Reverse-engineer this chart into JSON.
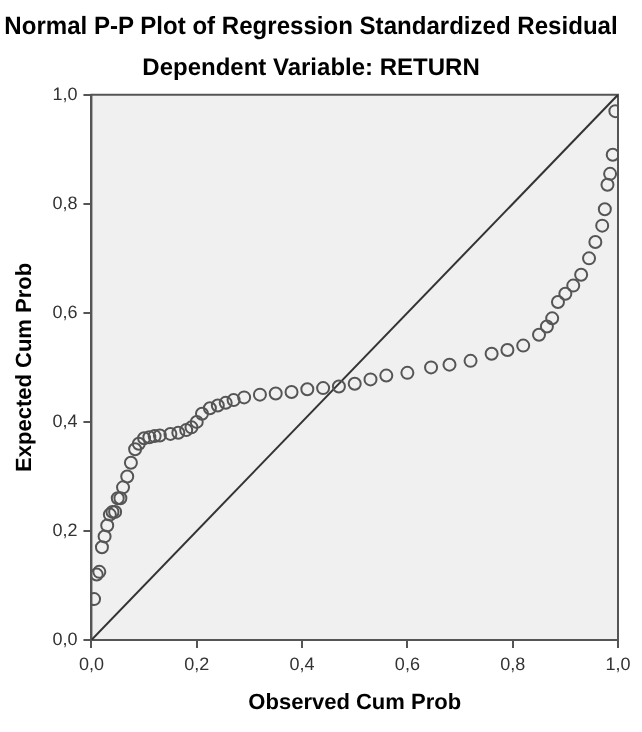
{
  "chart_data": {
    "type": "scatter",
    "title": "Normal P-P Plot of Regression Standardized Residual",
    "subtitle": "Dependent Variable: RETURN",
    "xlabel": "Observed Cum Prob",
    "ylabel": "Expected Cum Prob",
    "xlim": [
      0,
      1
    ],
    "ylim": [
      0,
      1
    ],
    "xticks": [
      {
        "value": 0,
        "label": "0,0"
      },
      {
        "value": 0.2,
        "label": "0,2"
      },
      {
        "value": 0.4,
        "label": "0,4"
      },
      {
        "value": 0.6,
        "label": "0,6"
      },
      {
        "value": 0.8,
        "label": "0,8"
      },
      {
        "value": 1,
        "label": "1,0"
      }
    ],
    "yticks": [
      {
        "value": 0,
        "label": "0,0"
      },
      {
        "value": 0.2,
        "label": "0,2"
      },
      {
        "value": 0.4,
        "label": "0,4"
      },
      {
        "value": 0.6,
        "label": "0,6"
      },
      {
        "value": 0.8,
        "label": "0,8"
      },
      {
        "value": 1,
        "label": "1,0"
      }
    ],
    "marker": "circle",
    "series": [
      {
        "color": "#555555",
        "x": [
          0.005,
          0.01,
          0.015,
          0.02,
          0.025,
          0.03,
          0.035,
          0.04,
          0.045,
          0.05,
          0.055,
          0.06,
          0.068,
          0.075,
          0.083,
          0.09,
          0.1,
          0.11,
          0.12,
          0.13,
          0.15,
          0.165,
          0.18,
          0.19,
          0.2,
          0.21,
          0.225,
          0.24,
          0.255,
          0.27,
          0.29,
          0.32,
          0.35,
          0.38,
          0.41,
          0.44,
          0.47,
          0.5,
          0.53,
          0.56,
          0.6,
          0.645,
          0.68,
          0.72,
          0.76,
          0.79,
          0.82,
          0.85,
          0.865,
          0.875,
          0.886,
          0.9,
          0.915,
          0.93,
          0.945,
          0.957,
          0.97,
          0.975,
          0.98,
          0.985,
          0.99,
          0.995
        ],
        "values": [
          0.075,
          0.12,
          0.125,
          0.17,
          0.19,
          0.21,
          0.23,
          0.235,
          0.235,
          0.26,
          0.26,
          0.28,
          0.3,
          0.325,
          0.35,
          0.36,
          0.37,
          0.372,
          0.374,
          0.375,
          0.378,
          0.38,
          0.385,
          0.39,
          0.4,
          0.415,
          0.425,
          0.43,
          0.435,
          0.44,
          0.445,
          0.45,
          0.452,
          0.455,
          0.46,
          0.462,
          0.465,
          0.47,
          0.478,
          0.485,
          0.49,
          0.5,
          0.505,
          0.512,
          0.525,
          0.532,
          0.54,
          0.56,
          0.575,
          0.59,
          0.62,
          0.635,
          0.65,
          0.67,
          0.7,
          0.73,
          0.76,
          0.79,
          0.835,
          0.855,
          0.89,
          0.97
        ]
      },
      {
        "type": "line",
        "marker": "none",
        "color": "#333333",
        "x": [
          0,
          1
        ],
        "values": [
          0,
          1
        ]
      }
    ]
  }
}
